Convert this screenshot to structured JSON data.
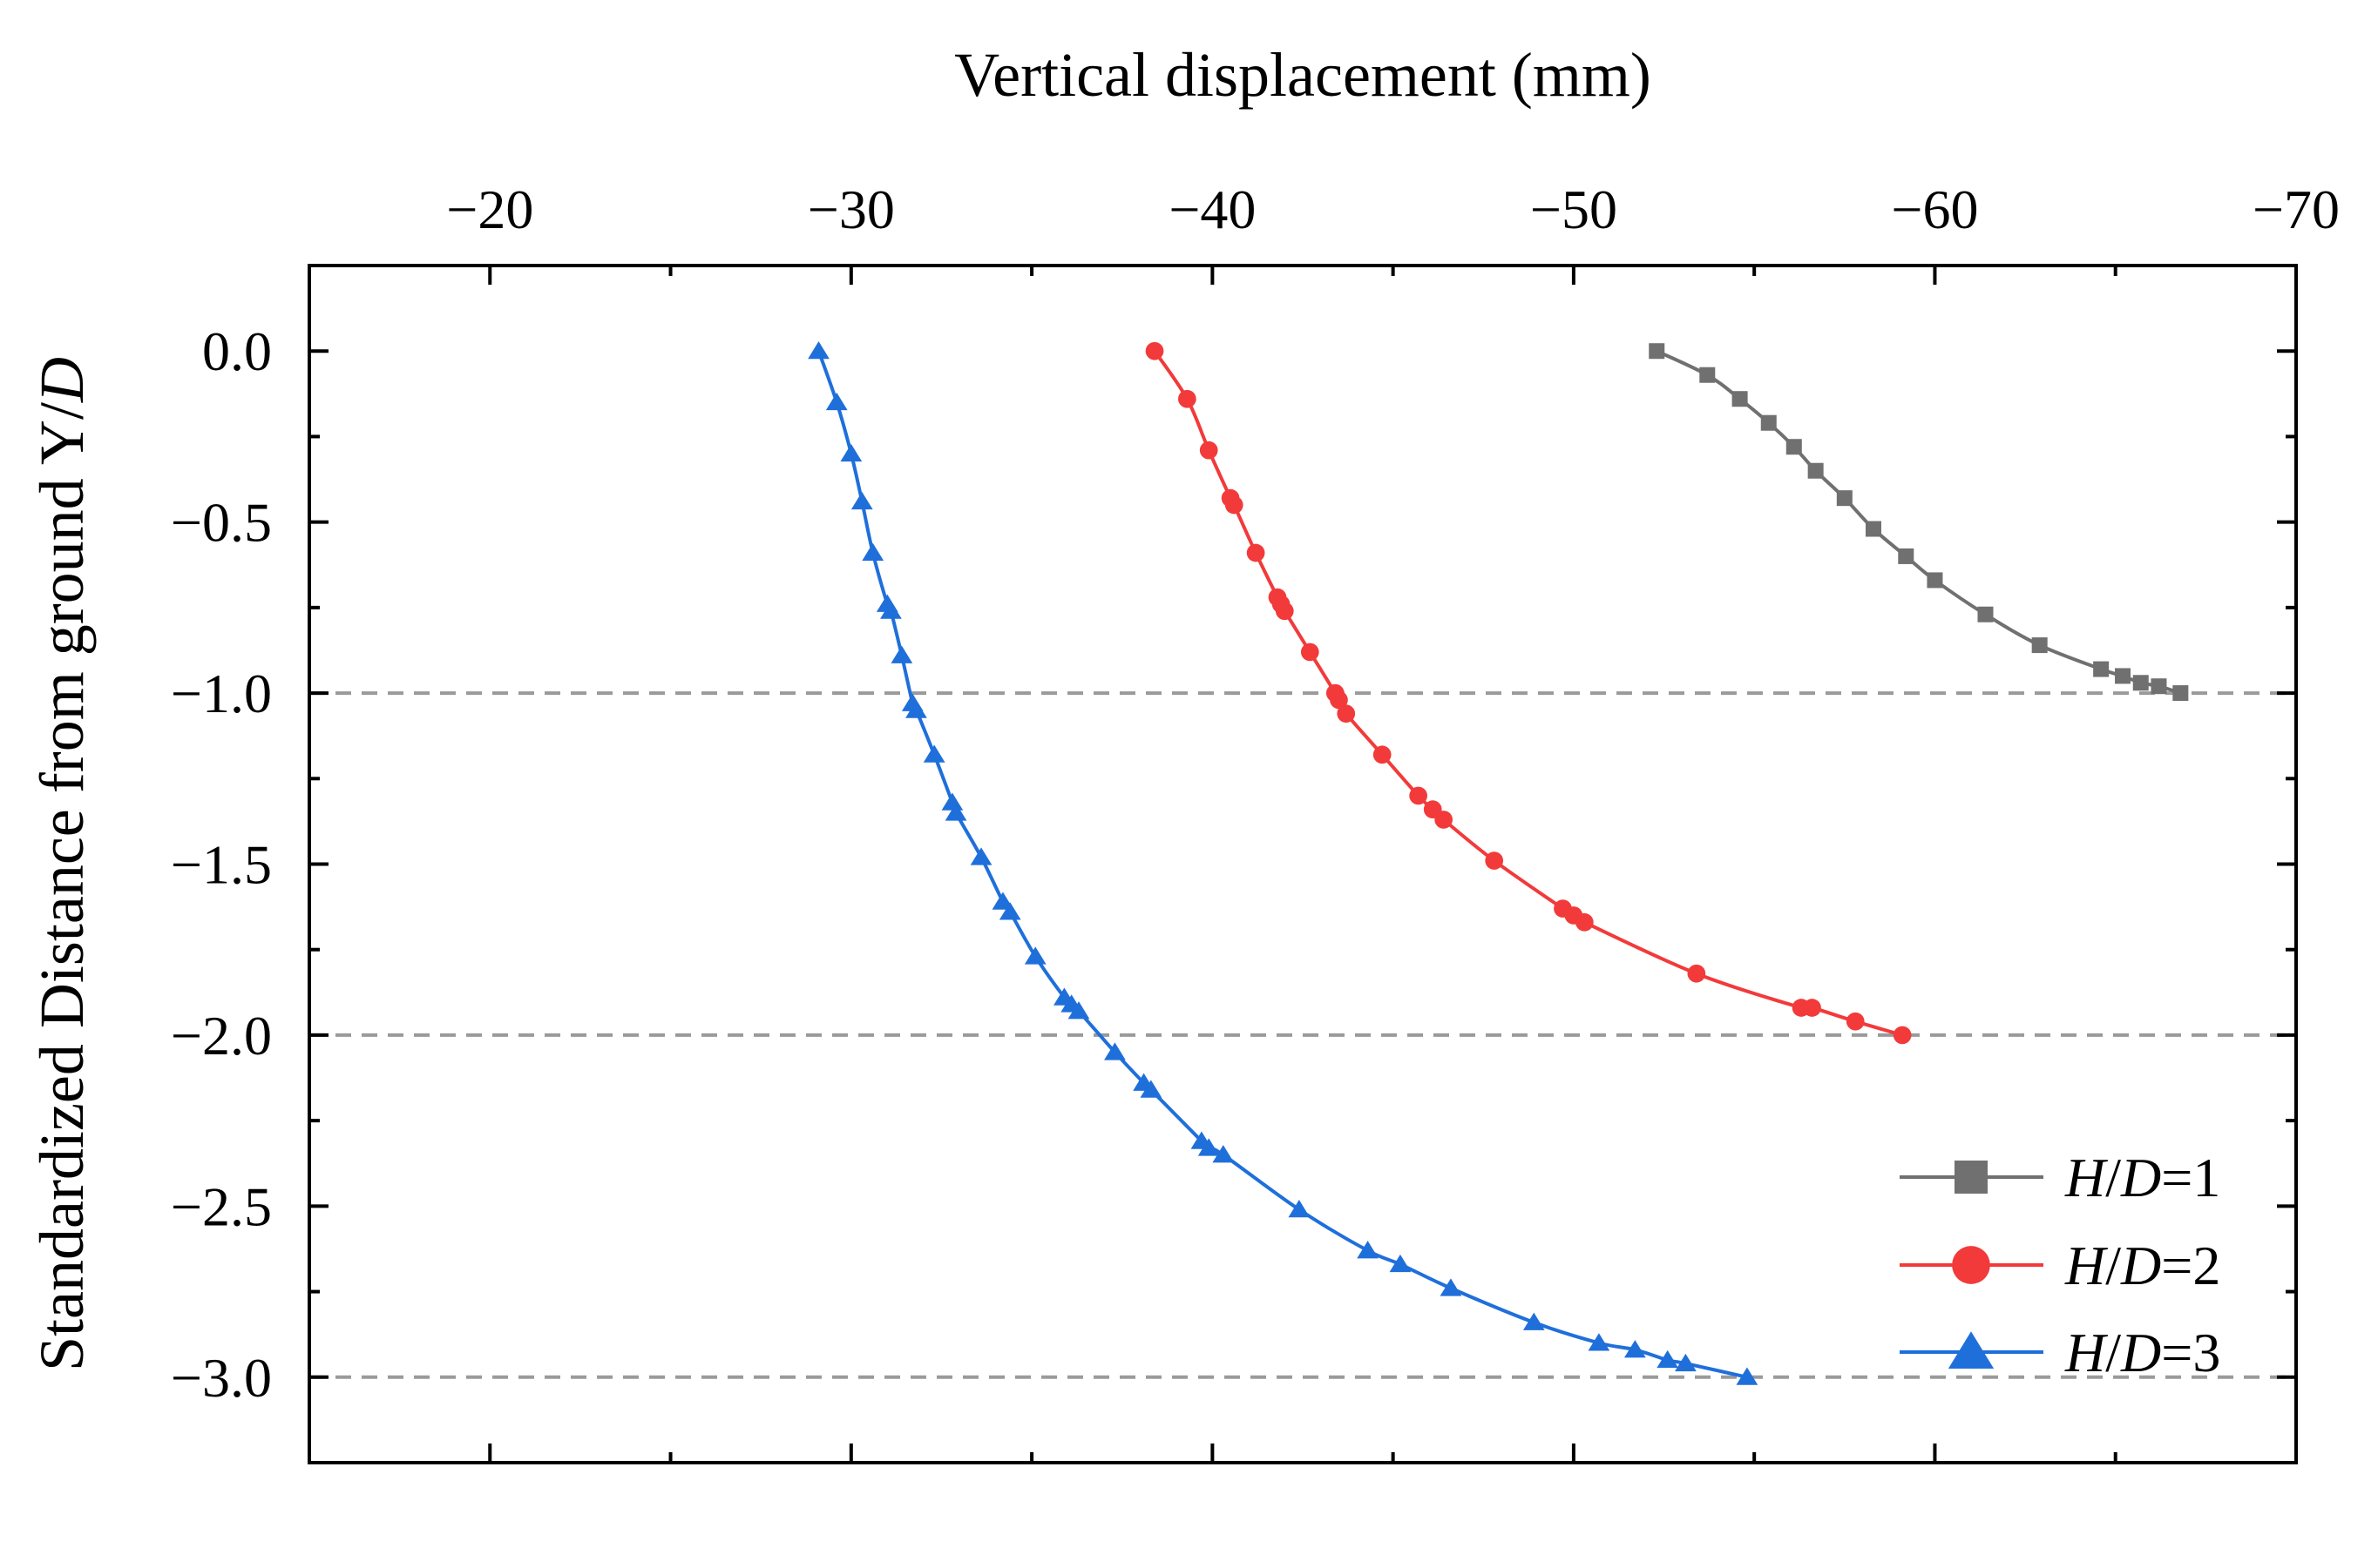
{
  "chart_data": {
    "type": "line",
    "xlabel": "Vertical displacement (mm)",
    "ylabel_text": "Standardized Distance from ground Y/",
    "ylabel_italic": "D",
    "xlim": [
      -15,
      -70
    ],
    "ylim": [
      -3.25,
      0.25
    ],
    "x_ticks": [
      -20,
      -30,
      -40,
      -50,
      -60,
      -70
    ],
    "x_tick_labels": [
      "−20",
      "−30",
      "−40",
      "−50",
      "−60",
      "−70"
    ],
    "y_ticks": [
      0.0,
      -0.5,
      -1.0,
      -1.5,
      -2.0,
      -2.5,
      -3.0
    ],
    "y_tick_labels": [
      "0.0",
      "−0.5",
      "−1.0",
      "−1.5",
      "−2.0",
      "−2.5",
      "−3.0"
    ],
    "reference_lines": [
      -1.0,
      -2.0,
      -3.0
    ],
    "legend_position": "bottom-right",
    "series": [
      {
        "name": "H/D=1",
        "legend_italic_1": "H",
        "legend_slash": "/",
        "legend_italic_2": "D",
        "legend_tail": "=1",
        "color": "#707070",
        "marker": "square",
        "points": [
          [
            -52.3,
            0.0
          ],
          [
            -53.7,
            -0.07
          ],
          [
            -54.6,
            -0.14
          ],
          [
            -55.4,
            -0.21
          ],
          [
            -56.1,
            -0.28
          ],
          [
            -56.7,
            -0.35
          ],
          [
            -57.5,
            -0.43
          ],
          [
            -58.3,
            -0.52
          ],
          [
            -59.2,
            -0.6
          ],
          [
            -60.0,
            -0.67
          ],
          [
            -61.4,
            -0.77
          ],
          [
            -62.9,
            -0.86
          ],
          [
            -64.6,
            -0.93
          ],
          [
            -65.2,
            -0.95
          ],
          [
            -65.7,
            -0.97
          ],
          [
            -66.2,
            -0.98
          ],
          [
            -66.8,
            -1.0
          ]
        ]
      },
      {
        "name": "H/D=2",
        "legend_italic_1": "H",
        "legend_slash": "/",
        "legend_italic_2": "D",
        "legend_tail": "=2",
        "color": "#f23a3a",
        "marker": "circle",
        "points": [
          [
            -38.4,
            0.0
          ],
          [
            -39.3,
            -0.14
          ],
          [
            -39.9,
            -0.29
          ],
          [
            -40.5,
            -0.43
          ],
          [
            -40.6,
            -0.45
          ],
          [
            -41.2,
            -0.59
          ],
          [
            -41.8,
            -0.72
          ],
          [
            -41.9,
            -0.74
          ],
          [
            -42.0,
            -0.76
          ],
          [
            -42.7,
            -0.88
          ],
          [
            -43.4,
            -1.0
          ],
          [
            -43.5,
            -1.02
          ],
          [
            -43.7,
            -1.06
          ],
          [
            -44.7,
            -1.18
          ],
          [
            -45.7,
            -1.3
          ],
          [
            -46.1,
            -1.34
          ],
          [
            -46.4,
            -1.37
          ],
          [
            -47.8,
            -1.49
          ],
          [
            -49.7,
            -1.63
          ],
          [
            -50.0,
            -1.65
          ],
          [
            -50.3,
            -1.67
          ],
          [
            -53.4,
            -1.82
          ],
          [
            -56.3,
            -1.92
          ],
          [
            -56.6,
            -1.92
          ],
          [
            -57.8,
            -1.96
          ],
          [
            -59.1,
            -2.0
          ]
        ]
      },
      {
        "name": "H/D=3",
        "legend_italic_1": "H",
        "legend_slash": "/",
        "legend_italic_2": "D",
        "legend_tail": "=3",
        "color": "#1f6fdb",
        "marker": "triangle",
        "points": [
          [
            -29.1,
            0.0
          ],
          [
            -29.6,
            -0.15
          ],
          [
            -30.0,
            -0.3
          ],
          [
            -30.3,
            -0.44
          ],
          [
            -30.6,
            -0.59
          ],
          [
            -31.0,
            -0.74
          ],
          [
            -31.1,
            -0.76
          ],
          [
            -31.4,
            -0.89
          ],
          [
            -31.7,
            -1.03
          ],
          [
            -31.8,
            -1.05
          ],
          [
            -32.3,
            -1.18
          ],
          [
            -32.8,
            -1.32
          ],
          [
            -32.9,
            -1.35
          ],
          [
            -33.6,
            -1.48
          ],
          [
            -34.2,
            -1.61
          ],
          [
            -34.4,
            -1.64
          ],
          [
            -35.1,
            -1.77
          ],
          [
            -35.9,
            -1.89
          ],
          [
            -36.1,
            -1.91
          ],
          [
            -36.3,
            -1.93
          ],
          [
            -37.3,
            -2.05
          ],
          [
            -38.1,
            -2.14
          ],
          [
            -38.3,
            -2.16
          ],
          [
            -39.7,
            -2.31
          ],
          [
            -39.9,
            -2.33
          ],
          [
            -40.3,
            -2.35
          ],
          [
            -42.4,
            -2.51
          ],
          [
            -44.3,
            -2.63
          ],
          [
            -45.2,
            -2.67
          ],
          [
            -46.6,
            -2.74
          ],
          [
            -48.9,
            -2.84
          ],
          [
            -50.7,
            -2.9
          ],
          [
            -51.7,
            -2.92
          ],
          [
            -52.6,
            -2.95
          ],
          [
            -53.1,
            -2.96
          ],
          [
            -54.8,
            -3.0
          ]
        ]
      }
    ]
  }
}
